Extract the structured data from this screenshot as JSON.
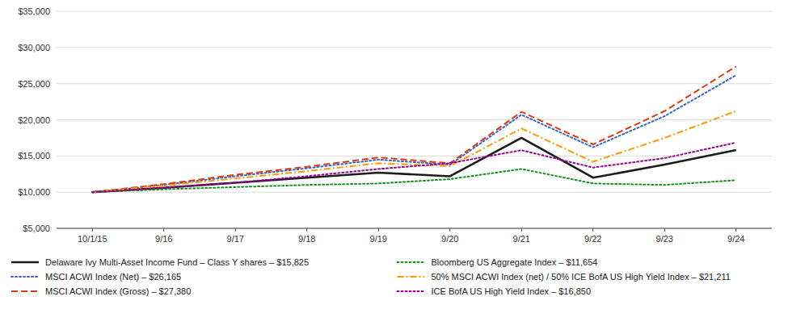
{
  "chart_data": {
    "type": "line",
    "categories": [
      "10/1/15",
      "9/16",
      "9/17",
      "9/18",
      "9/19",
      "9/20",
      "9/21",
      "9/22",
      "9/23",
      "9/24"
    ],
    "ylim": [
      5000,
      35000
    ],
    "yticks": [
      {
        "value": 5000,
        "label": "$5,000"
      },
      {
        "value": 10000,
        "label": "$10,000"
      },
      {
        "value": 15000,
        "label": "$15,000"
      },
      {
        "value": 20000,
        "label": "$20,000"
      },
      {
        "value": 25000,
        "label": "$25,000"
      },
      {
        "value": 30000,
        "label": "$30,000"
      },
      {
        "value": 35000,
        "label": "$35,000"
      }
    ],
    "grid": true,
    "legend": "bottom",
    "series": [
      {
        "name": "Delaware Ivy Multi-Asset Income Fund – Class Y shares – $15,825",
        "color": "#1b1b1b",
        "line_style": "solid",
        "values": [
          10000,
          10600,
          11300,
          12000,
          12700,
          12200,
          17500,
          12000,
          13800,
          15825
        ]
      },
      {
        "name": "MSCI ACWI Index (Net) – $26,165",
        "color": "#3366cc",
        "line_style": "dotted",
        "values": [
          10000,
          11000,
          12200,
          13300,
          14500,
          13800,
          20700,
          16200,
          20500,
          26165
        ]
      },
      {
        "name": "MSCI ACWI Index (Gross) – $27,380",
        "color": "#dc3912",
        "line_style": "dashed",
        "values": [
          10000,
          11100,
          12400,
          13500,
          14800,
          14000,
          21100,
          16600,
          21200,
          27380
        ]
      },
      {
        "name": "Bloomberg US Aggregate Index – $11,654",
        "color": "#109618",
        "line_style": "dotted",
        "values": [
          10000,
          10400,
          10700,
          11000,
          11200,
          11800,
          13200,
          11200,
          11000,
          11654
        ]
      },
      {
        "name": "50% MSCI ACWI Index (net) / 50% ICE BofA US High Yield Index – $21,211",
        "color": "#ff9900",
        "line_style": "dashdot",
        "values": [
          10000,
          10900,
          11900,
          12900,
          14000,
          13600,
          18800,
          14200,
          17500,
          21211
        ]
      },
      {
        "name": "ICE BofA US High Yield Index – $16,850",
        "color": "#990099",
        "line_style": "dotted",
        "values": [
          10000,
          10600,
          11300,
          12200,
          13200,
          14000,
          15800,
          13400,
          14700,
          16850
        ]
      }
    ]
  }
}
